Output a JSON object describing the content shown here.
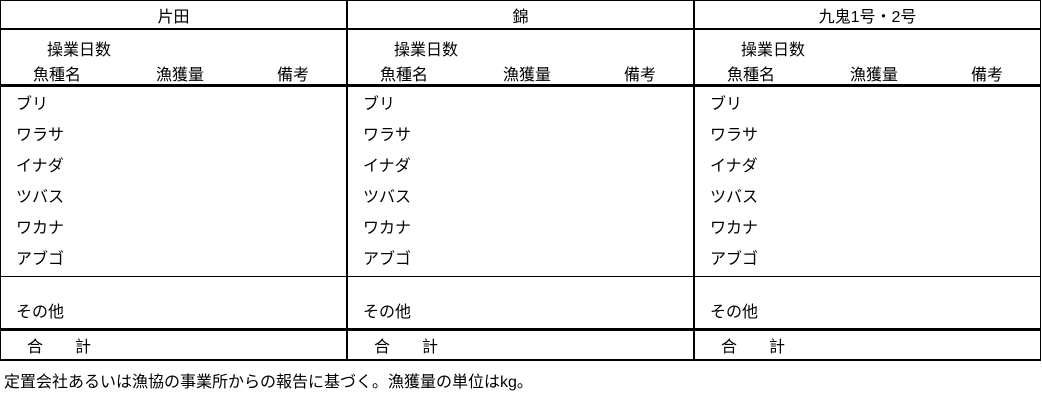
{
  "table": {
    "sections": [
      {
        "title": "片田",
        "operating_days_label": "操業日数",
        "columns": {
          "species": "魚種名",
          "catch": "漁獲量",
          "remarks": "備考"
        },
        "species_rows": [
          "ブリ",
          "ワラサ",
          "イナダ",
          "ツバス",
          "ワカナ",
          "アブゴ"
        ],
        "other_label": "その他",
        "total_label": "合　　計"
      },
      {
        "title": "錦",
        "operating_days_label": "操業日数",
        "columns": {
          "species": "魚種名",
          "catch": "漁獲量",
          "remarks": "備考"
        },
        "species_rows": [
          "ブリ",
          "ワラサ",
          "イナダ",
          "ツバス",
          "ワカナ",
          "アブゴ"
        ],
        "other_label": "その他",
        "total_label": "合　　計"
      },
      {
        "title": "九鬼1号・2号",
        "operating_days_label": "操業日数",
        "columns": {
          "species": "魚種名",
          "catch": "漁獲量",
          "remarks": "備考"
        },
        "species_rows": [
          "ブリ",
          "ワラサ",
          "イナダ",
          "ツバス",
          "ワカナ",
          "アブゴ"
        ],
        "other_label": "その他",
        "total_label": "合　　計"
      }
    ]
  },
  "footer_note": "定置会社あるいは漁協の事業所からの報告に基づく。漁獲量の単位はkg。"
}
